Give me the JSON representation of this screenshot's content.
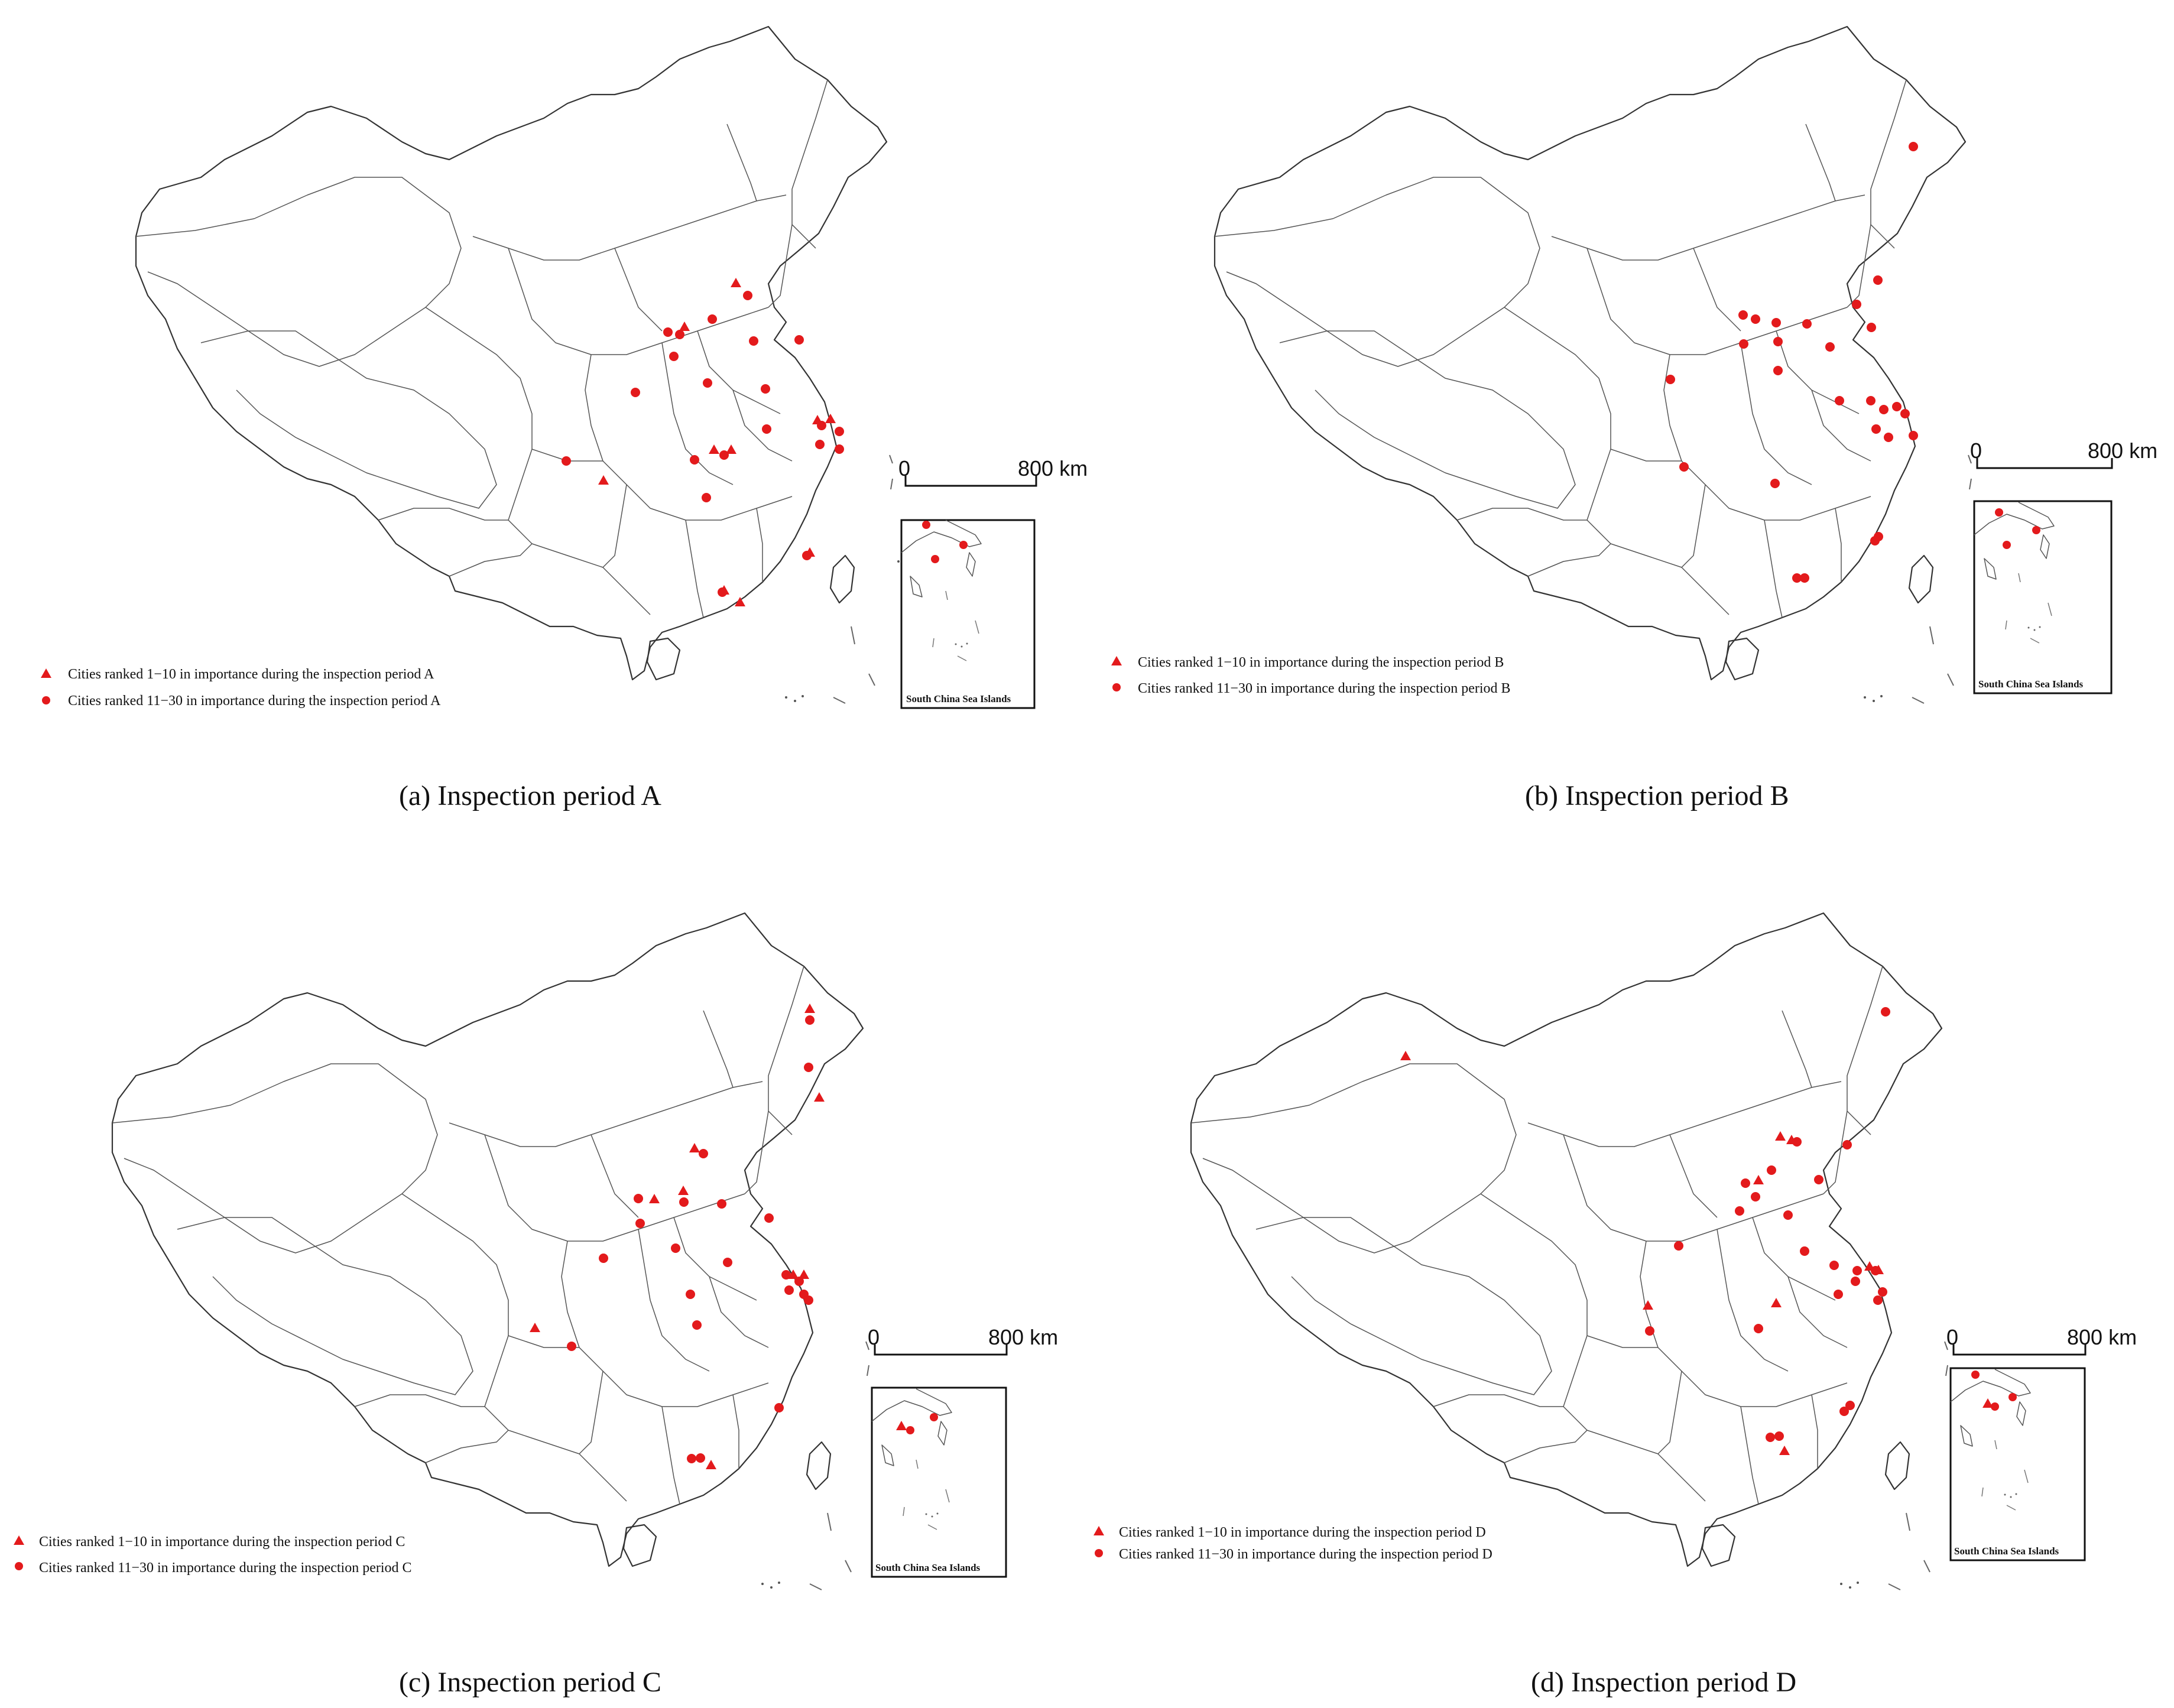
{
  "figure": {
    "panels": [
      {
        "id": "a",
        "caption": "(a) Inspection period A",
        "legend": [
          {
            "symbol": "triangle",
            "text": "Cities ranked 1−10 in importance during the inspection period A"
          },
          {
            "symbol": "circle",
            "text": "Cities ranked 11−30 in importance during the inspection period A"
          }
        ],
        "scale_bar": {
          "zero_label": "0",
          "end_label": "800 km"
        },
        "inset_title": "South China Sea Islands"
      },
      {
        "id": "b",
        "caption": "(b) Inspection period B",
        "legend": [
          {
            "symbol": "triangle",
            "text": "Cities ranked 1−10 in importance during the inspection period B"
          },
          {
            "symbol": "circle",
            "text": "Cities ranked 11−30 in importance during the inspection period B"
          }
        ],
        "scale_bar": {
          "zero_label": "0",
          "end_label": "800 km"
        },
        "inset_title": "South China Sea Islands"
      },
      {
        "id": "c",
        "caption": "(c) Inspection period C",
        "legend": [
          {
            "symbol": "triangle",
            "text": "Cities ranked 1−10 in importance during the inspection period C"
          },
          {
            "symbol": "circle",
            "text": "Cities ranked 11−30 in importance during the inspection period C"
          }
        ],
        "scale_bar": {
          "zero_label": "0",
          "end_label": "800 km"
        },
        "inset_title": "South China Sea Islands"
      },
      {
        "id": "d",
        "caption": "(d) Inspection period D",
        "legend": [
          {
            "symbol": "triangle",
            "text": "Cities ranked 1−10 in importance during the inspection period D"
          },
          {
            "symbol": "circle",
            "text": "Cities ranked 11−30 in importance during the inspection period D"
          }
        ],
        "scale_bar": {
          "zero_label": "0",
          "end_label": "800 km"
        },
        "inset_title": "South China Sea Islands"
      }
    ],
    "symbol_color": "#e31a1c"
  }
}
